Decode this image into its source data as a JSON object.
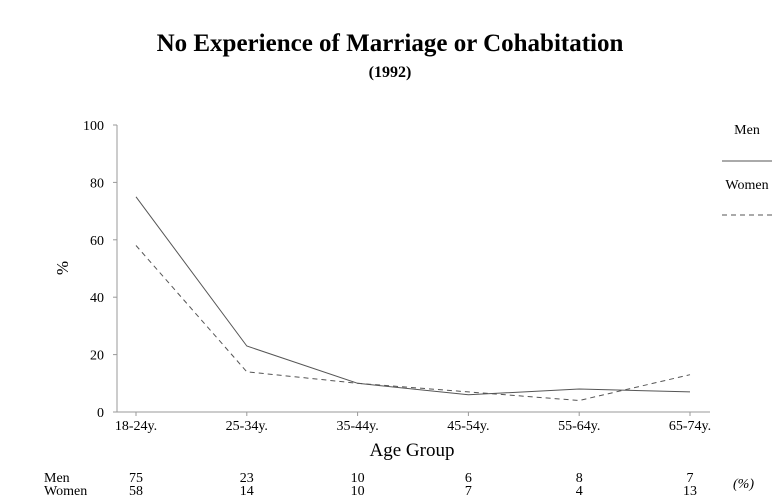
{
  "title": "No Experience of Marriage or Cohabitation",
  "subtitle": "(1992)",
  "chart_data": {
    "type": "line",
    "title": "No Experience of Marriage or Cohabitation",
    "subtitle": "(1992)",
    "xlabel": "Age Group",
    "ylabel": "%",
    "ylim": [
      0,
      100
    ],
    "yticks": [
      0,
      20,
      40,
      60,
      80,
      100
    ],
    "categories": [
      "18-24y.",
      "25-34y.",
      "35-44y.",
      "45-54y.",
      "55-64y.",
      "65-74y."
    ],
    "series": [
      {
        "name": "Men",
        "values": [
          75,
          23,
          10,
          6,
          8,
          7
        ],
        "style": "solid",
        "color": "#555555"
      },
      {
        "name": "Women",
        "values": [
          58,
          14,
          10,
          7,
          4,
          13
        ],
        "style": "dashed",
        "color": "#555555"
      }
    ],
    "legend_position": "top-right",
    "grid": false,
    "table_unit": "(%)"
  }
}
